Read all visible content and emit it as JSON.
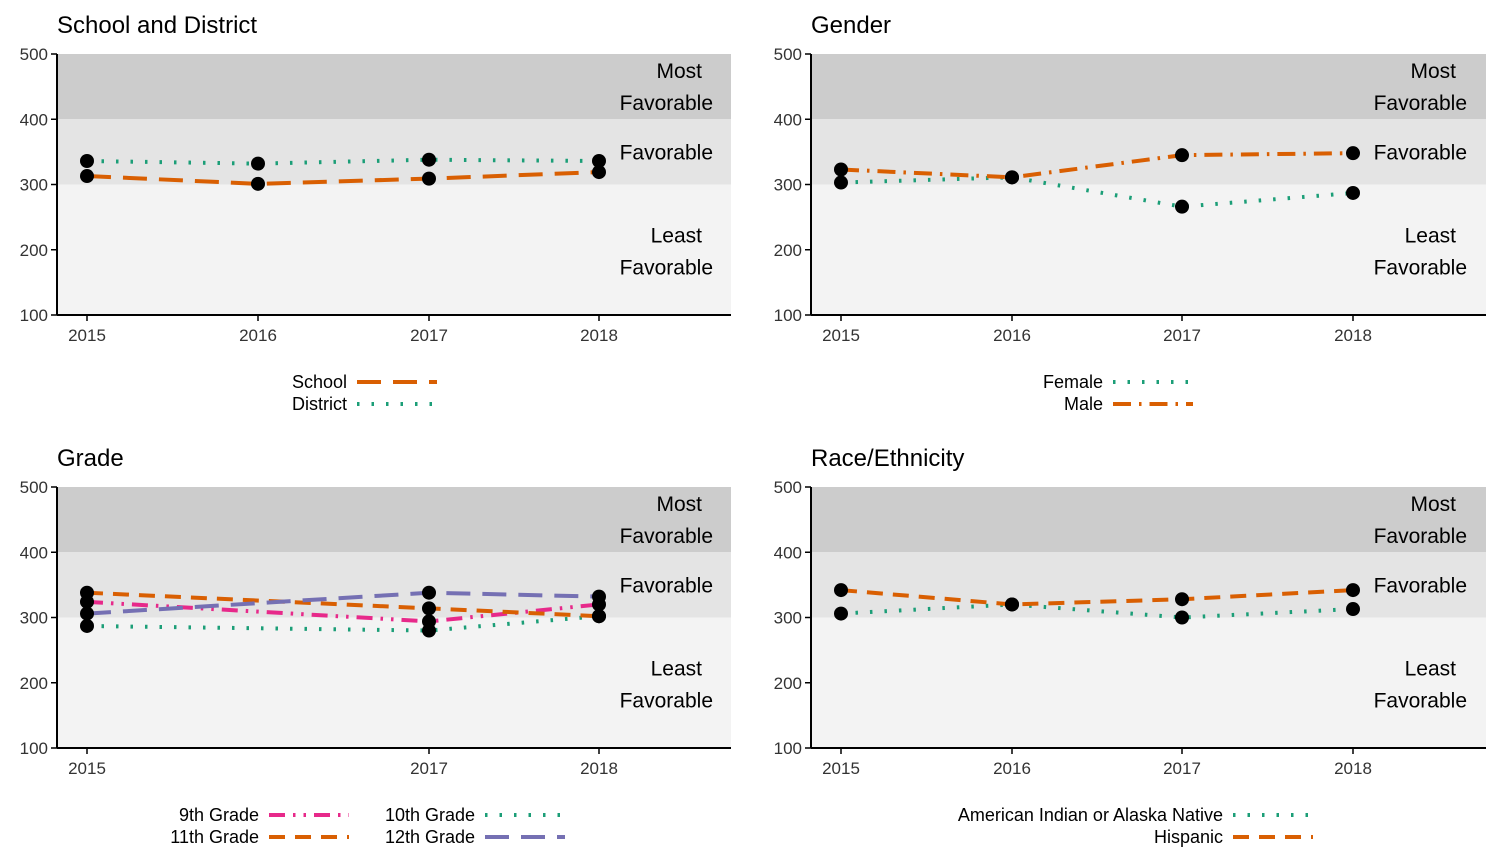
{
  "colors": {
    "band_most": "#cccccc",
    "band_fav": "#e4e4e4",
    "band_least": "#f3f3f3",
    "orange": "#d95f02",
    "green": "#1b9e77",
    "pink": "#e7298a",
    "purple": "#7570b3",
    "point": "#000000"
  },
  "chart_data": [
    {
      "type": "line",
      "title": "School and District",
      "xlabel": "",
      "ylabel": "",
      "x": [
        "2015",
        "2016",
        "2017",
        "2018"
      ],
      "ylim": [
        100,
        500
      ],
      "yticks": [
        "100",
        "200",
        "300",
        "400",
        "500"
      ],
      "band_labels": {
        "most": [
          "Most",
          "Favorable"
        ],
        "favorable": [
          "Favorable"
        ],
        "least": [
          "Least",
          "Favorable"
        ]
      },
      "series": [
        {
          "name": "School",
          "color": "#d95f02",
          "dash": "longdash",
          "values": [
            313,
            301,
            309,
            319
          ]
        },
        {
          "name": "District",
          "color": "#1b9e77",
          "dash": "dotted",
          "values": [
            336,
            332,
            338,
            336
          ]
        }
      ],
      "legend": {
        "position": "bottom",
        "rows": [
          [
            "School"
          ],
          [
            "District"
          ]
        ]
      }
    },
    {
      "type": "line",
      "title": "Gender",
      "xlabel": "",
      "ylabel": "",
      "x": [
        "2015",
        "2016",
        "2017",
        "2018"
      ],
      "ylim": [
        100,
        500
      ],
      "yticks": [
        "100",
        "200",
        "300",
        "400",
        "500"
      ],
      "band_labels": {
        "most": [
          "Most",
          "Favorable"
        ],
        "favorable": [
          "Favorable"
        ],
        "least": [
          "Least",
          "Favorable"
        ]
      },
      "series": [
        {
          "name": "Female",
          "color": "#1b9e77",
          "dash": "dotted",
          "values": [
            303,
            311,
            266,
            287
          ]
        },
        {
          "name": "Male",
          "color": "#d95f02",
          "dash": "dashdot",
          "values": [
            323,
            311,
            345,
            348
          ]
        }
      ],
      "legend": {
        "position": "bottom",
        "rows": [
          [
            "Female"
          ],
          [
            "Male"
          ]
        ]
      }
    },
    {
      "type": "line",
      "title": "Grade",
      "xlabel": "",
      "ylabel": "",
      "x": [
        "2015",
        "2017",
        "2018"
      ],
      "ylim": [
        100,
        500
      ],
      "yticks": [
        "100",
        "200",
        "300",
        "400",
        "500"
      ],
      "band_labels": {
        "most": [
          "Most",
          "Favorable"
        ],
        "favorable": [
          "Favorable"
        ],
        "least": [
          "Least",
          "Favorable"
        ]
      },
      "series": [
        {
          "name": "9th Grade",
          "color": "#e7298a",
          "dash": "dashdotdot",
          "values": [
            324,
            294,
            320
          ]
        },
        {
          "name": "10th Grade",
          "color": "#1b9e77",
          "dash": "dotted",
          "values": [
            287,
            280,
            302
          ]
        },
        {
          "name": "11th Grade",
          "color": "#d95f02",
          "dash": "dashed",
          "values": [
            338,
            314,
            302
          ]
        },
        {
          "name": "12th Grade",
          "color": "#7570b3",
          "dash": "longdash",
          "values": [
            306,
            338,
            332
          ]
        }
      ],
      "legend": {
        "position": "bottom",
        "rows": [
          [
            "9th Grade",
            "10th Grade"
          ],
          [
            "11th Grade",
            "12th Grade"
          ]
        ]
      }
    },
    {
      "type": "line",
      "title": "Race/Ethnicity",
      "xlabel": "",
      "ylabel": "",
      "x": [
        "2015",
        "2016",
        "2017",
        "2018"
      ],
      "ylim": [
        100,
        500
      ],
      "yticks": [
        "100",
        "200",
        "300",
        "400",
        "500"
      ],
      "band_labels": {
        "most": [
          "Most",
          "Favorable"
        ],
        "favorable": [
          "Favorable"
        ],
        "least": [
          "Least",
          "Favorable"
        ]
      },
      "series": [
        {
          "name": "American Indian or Alaska Native",
          "color": "#1b9e77",
          "dash": "dotted",
          "values": [
            306,
            320,
            300,
            313
          ]
        },
        {
          "name": "Hispanic",
          "color": "#d95f02",
          "dash": "dashed",
          "values": [
            342,
            320,
            328,
            342
          ]
        }
      ],
      "legend": {
        "position": "bottom",
        "rows": [
          [
            "American Indian or Alaska Native"
          ],
          [
            "Hispanic"
          ]
        ]
      }
    }
  ]
}
